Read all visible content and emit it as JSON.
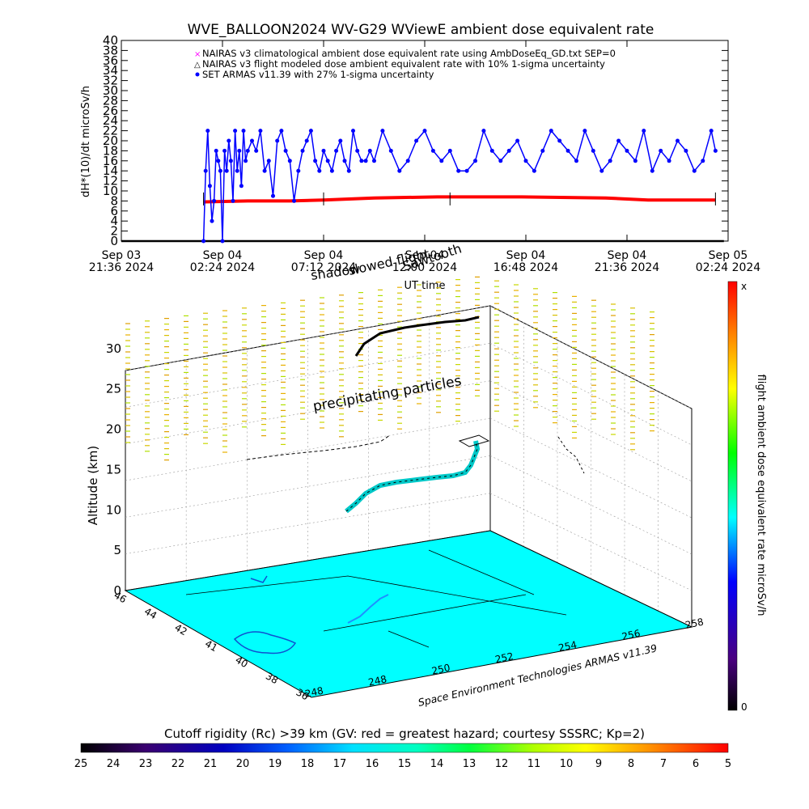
{
  "chart_data": [
    {
      "type": "line",
      "title": "WVE_BALLOON2024 WV-G29 WViewE ambient dose equivalent rate",
      "ylabel": "dH*(10)/dt microSv/h",
      "xlabel": "UT time",
      "ylim": [
        0,
        40
      ],
      "y_ticks": [
        "0",
        "2",
        "4",
        "6",
        "8",
        "10",
        "12",
        "14",
        "16",
        "18",
        "20",
        "22",
        "24",
        "26",
        "28",
        "30",
        "32",
        "34",
        "36",
        "38",
        "40"
      ],
      "x_ticks": [
        {
          "date": "Sep 03",
          "time": "21:36 2024"
        },
        {
          "date": "Sep 04",
          "time": "02:24 2024"
        },
        {
          "date": "Sep 04",
          "time": "07:12 2024"
        },
        {
          "date": "Sep 04",
          "time": "12:00 2024"
        },
        {
          "date": "Sep 04",
          "time": "16:48 2024"
        },
        {
          "date": "Sep 04",
          "time": "21:36 2024"
        },
        {
          "date": "Sep 05",
          "time": "02:24 2024"
        }
      ],
      "legend": [
        "NAIRAS v3 climatological ambient dose equivalent rate using AmbDoseEq_GD.txt SEP=0",
        "NAIRAS v3 flight modeled dose ambient equivalent rate with 10% 1-sigma uncertainty",
        "SET ARMAS v11.39 with 27% 1-sigma uncertainty"
      ],
      "legend_placement": "top",
      "annotations": [
        "Sawtooth",
        "slowed flight",
        "shadow"
      ],
      "series": [
        {
          "name": "NAIRAS v3 climatological ambient dose equivalent rate using AmbDoseEq_GD.txt SEP=0",
          "color": "#000000",
          "x_hours": [
            0,
            28.6
          ],
          "values": [
            0,
            0
          ]
        },
        {
          "name": "NAIRAS v3 flight modeled dose ambient equivalent rate with 10% 1-sigma uncertainty",
          "color": "#ff0000",
          "x_hours": [
            3.9,
            6,
            8,
            9.6,
            12,
            15,
            19,
            23,
            25,
            28.2
          ],
          "values": [
            7.8,
            8.0,
            8.0,
            8.2,
            8.6,
            8.8,
            8.8,
            8.6,
            8.2,
            8.2
          ]
        },
        {
          "name": "SET ARMAS v11.39 with 27% 1-sigma uncertainty",
          "color": "#0000ff",
          "x_hours": [
            3.9,
            4.0,
            4.1,
            4.2,
            4.3,
            4.4,
            4.5,
            4.6,
            4.7,
            4.8,
            4.9,
            5.0,
            5.1,
            5.2,
            5.3,
            5.4,
            5.5,
            5.6,
            5.7,
            5.8,
            5.9,
            6.0,
            6.2,
            6.4,
            6.6,
            6.8,
            7.0,
            7.2,
            7.4,
            7.6,
            7.8,
            8.0,
            8.2,
            8.4,
            8.6,
            8.8,
            9.0,
            9.2,
            9.4,
            9.6,
            9.8,
            10.0,
            10.2,
            10.4,
            10.6,
            10.8,
            11.0,
            11.2,
            11.4,
            11.6,
            11.8,
            12.0,
            12.4,
            12.8,
            13.2,
            13.6,
            14.0,
            14.4,
            14.8,
            15.2,
            15.6,
            16.0,
            16.4,
            16.8,
            17.2,
            17.6,
            18.0,
            18.4,
            18.8,
            19.2,
            19.6,
            20.0,
            20.4,
            20.8,
            21.2,
            21.6,
            22.0,
            22.4,
            22.8,
            23.2,
            23.6,
            24.0,
            24.4,
            24.8,
            25.2,
            25.6,
            26.0,
            26.4,
            26.8,
            27.2,
            27.6,
            28.0,
            28.2
          ],
          "values": [
            0,
            14,
            22,
            11,
            4,
            8,
            18,
            16,
            14,
            0,
            18,
            14,
            20,
            16,
            8,
            22,
            14,
            18,
            11,
            22,
            16,
            18,
            20,
            18,
            22,
            14,
            16,
            9,
            20,
            22,
            18,
            16,
            8,
            14,
            18,
            20,
            22,
            16,
            14,
            18,
            16,
            14,
            18,
            20,
            16,
            14,
            22,
            18,
            16,
            16,
            18,
            16,
            22,
            18,
            14,
            16,
            20,
            22,
            18,
            16,
            18,
            14,
            14,
            16,
            22,
            18,
            16,
            18,
            20,
            16,
            14,
            18,
            22,
            20,
            18,
            16,
            22,
            18,
            14,
            16,
            20,
            18,
            16,
            22,
            14,
            18,
            16,
            20,
            18,
            14,
            16,
            22,
            18
          ]
        }
      ]
    },
    {
      "type": "scatter",
      "title": "",
      "zlabel": "Altitude (km)",
      "z_ticks": [
        "0",
        "5",
        "10",
        "15",
        "20",
        "25",
        "30"
      ],
      "lat_ticks": [
        "46",
        "44",
        "42",
        "41",
        "40",
        "38",
        "36"
      ],
      "lon_ticks": [
        "248",
        "248",
        "250",
        "252",
        "254",
        "256",
        "258"
      ],
      "credit": "Space Environment Technologies ARMAS v11.39",
      "annotation": "precipitating particles",
      "colorbar_label": "flight ambient dose equivalent rate microSv/h",
      "colorbar_range": [
        "0",
        "x"
      ],
      "flight_track_altitude_km": [
        11,
        11.5,
        12,
        13,
        14,
        15,
        15.5,
        16,
        16.3,
        16.5,
        17,
        17.5,
        18,
        19,
        20,
        21,
        22
      ]
    },
    {
      "type": "heatmap",
      "title": "Cutoff rigidity (Rc) >39 km (GV: red = greatest hazard; courtesy SSSRC; Kp=2)",
      "colorbar_ticks": [
        "25",
        "24",
        "23",
        "22",
        "21",
        "20",
        "19",
        "18",
        "17",
        "16",
        "15",
        "14",
        "13",
        "12",
        "11",
        "10",
        "9",
        "8",
        "7",
        "6",
        "5"
      ],
      "colors": [
        "#000000",
        "#3a0070",
        "#0000c0",
        "#0050ff",
        "#00c0ff",
        "#00ffd0",
        "#00ff60",
        "#40ff00",
        "#c0ff00",
        "#ffff00",
        "#ffa000",
        "#ff4000",
        "#ff0000"
      ]
    }
  ]
}
